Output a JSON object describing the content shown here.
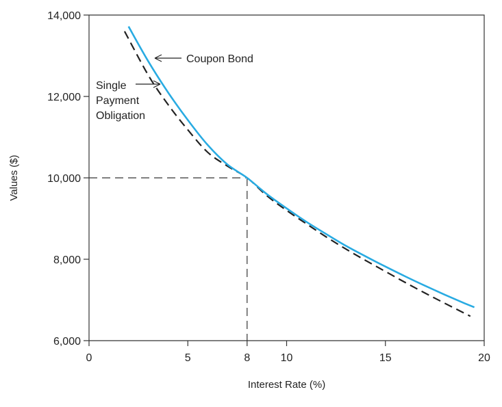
{
  "chart_data": {
    "type": "line",
    "xlabel": "Interest Rate (%)",
    "ylabel": "Values ($)",
    "xlim": [
      0,
      20
    ],
    "ylim": [
      6000,
      14000
    ],
    "x_ticks": [
      0,
      5,
      8,
      10,
      15,
      20
    ],
    "y_ticks": [
      6000,
      8000,
      10000,
      12000,
      14000
    ],
    "x_tick_labels": [
      "0",
      "5",
      "8",
      "10",
      "15",
      "20"
    ],
    "y_tick_labels": [
      "6,000",
      "8,000",
      "10,000",
      "12,000",
      "14,000"
    ],
    "grid": false,
    "series": [
      {
        "name": "Coupon Bond",
        "color": "#29abe2",
        "style": "solid",
        "x": [
          2,
          3,
          4,
          5,
          6,
          7,
          8,
          9,
          10,
          11,
          12,
          13,
          14,
          15,
          16,
          17,
          18,
          19,
          19.5
        ],
        "y": [
          13720,
          12860,
          12100,
          11420,
          10810,
          10330,
          10000,
          9600,
          9250,
          8920,
          8620,
          8330,
          8070,
          7820,
          7580,
          7350,
          7130,
          6920,
          6820
        ]
      },
      {
        "name": "Single Payment Obligation",
        "color": "#222222",
        "style": "dashed",
        "x": [
          1.8,
          3,
          4,
          5,
          6,
          7,
          8,
          9,
          10,
          11,
          12,
          13,
          14,
          15,
          16,
          17,
          18,
          19.3
        ],
        "y": [
          13600,
          12520,
          11800,
          11180,
          10630,
          10290,
          10000,
          9560,
          9200,
          8870,
          8550,
          8250,
          7970,
          7700,
          7430,
          7170,
          6920,
          6600
        ]
      }
    ],
    "reference": {
      "x": 8,
      "y": 10000
    },
    "annotations": [
      {
        "text": "Coupon Bond",
        "lines": [
          "Coupon Bond"
        ]
      },
      {
        "text": "Single Payment Obligation",
        "lines": [
          "Single",
          "Payment",
          "Obligation"
        ]
      }
    ]
  }
}
